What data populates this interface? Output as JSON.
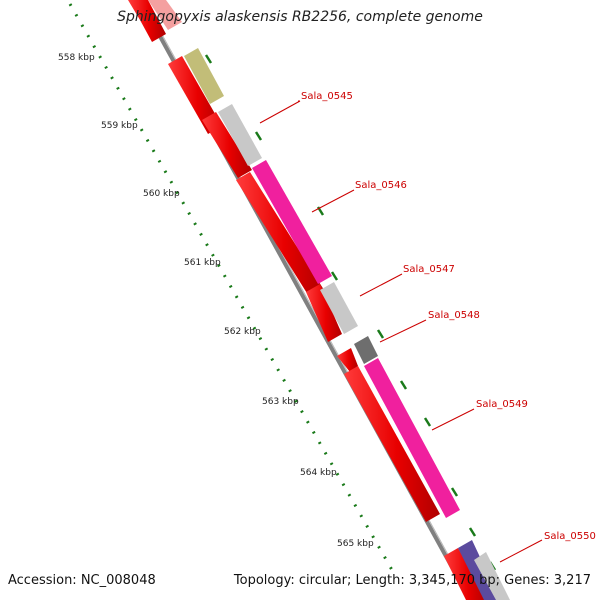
{
  "title": "Sphingopyxis alaskensis RB2256, complete genome",
  "accession": "Accession: NC_008048",
  "summary": "Topology: circular; Length: 3,345,170 bp; Genes: 3,217",
  "ruler_labels": [
    "558 kbp",
    "559 kbp",
    "560 kbp",
    "561 kbp",
    "562 kbp",
    "563 kbp",
    "564 kbp",
    "565 kbp"
  ],
  "gene_labels": [
    "Sala_0545",
    "Sala_0546",
    "Sala_0547",
    "Sala_0548",
    "Sala_0549",
    "Sala_0550"
  ],
  "colors": {
    "cds": "#ee0000",
    "backbone": "#808080",
    "ruler_tick": "#1a7a1a",
    "label": "#cc0000",
    "feature_olive": "#c2bd78",
    "feature_grey": "#c8c8c8",
    "feature_pink": "#f0209e",
    "feature_darkgrey": "#6e6e6e",
    "feature_purple": "#5b4b9e"
  }
}
